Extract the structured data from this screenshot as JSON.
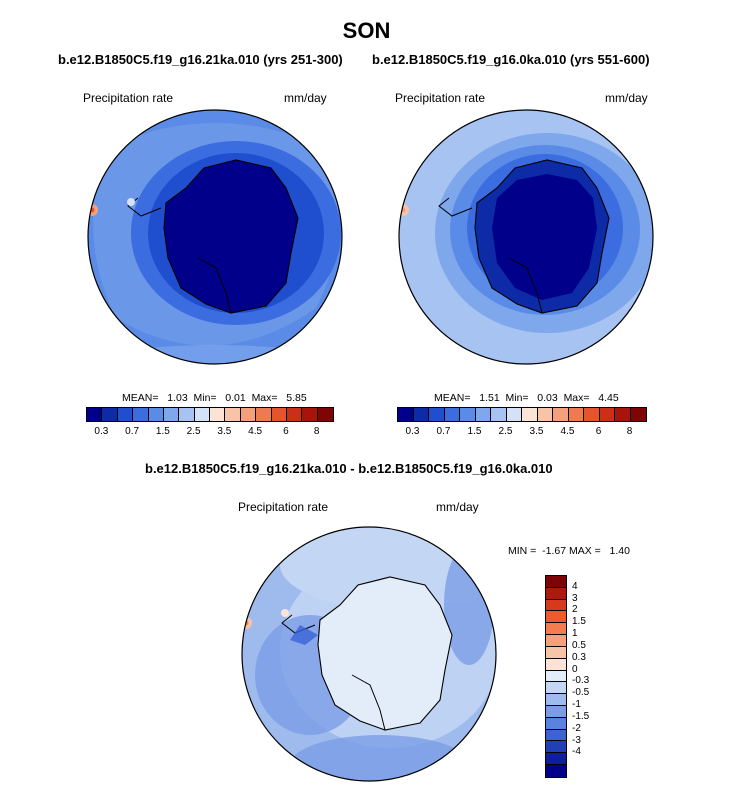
{
  "title": "SON",
  "panels": [
    {
      "subtitle": "b.e12.B1850C5.f19_g16.21ka.010 (yrs 251-300)",
      "left_label": "Precipitation rate",
      "right_label": "mm/day",
      "stats": "MEAN=   1.03  Min=   0.01  Max=   5.85"
    },
    {
      "subtitle": "b.e12.B1850C5.f19_g16.0ka.010 (yrs 551-600)",
      "left_label": "Precipitation rate",
      "right_label": "mm/day",
      "stats": "MEAN=   1.51  Min=   0.03  Max=   4.45"
    }
  ],
  "diff_panel": {
    "subtitle": "b.e12.B1850C5.f19_g16.21ka.010 - b.e12.B1850C5.f19_g16.0ka.010",
    "left_label": "Precipitation rate",
    "right_label": "mm/day",
    "stats": "MIN =  -1.67 MAX =   1.40"
  },
  "colorbar_abs": {
    "colors": [
      "#00008b",
      "#0d2ba7",
      "#1f4fce",
      "#3b6de0",
      "#5a8be6",
      "#7ea7ec",
      "#a7c3f2",
      "#d3e2f7",
      "#fbe4d6",
      "#f8c4a7",
      "#f5a07c",
      "#ef7a52",
      "#e5532f",
      "#cc2f17",
      "#a8130c",
      "#7d0505"
    ],
    "ticks": [
      "0.3",
      "0.7",
      "1.5",
      "2.5",
      "3.5",
      "4.5",
      "6",
      "8"
    ]
  },
  "colorbar_diff": {
    "colors_top_to_bottom": [
      "#7d0505",
      "#ad1a0d",
      "#d6391c",
      "#ef5a2f",
      "#f47c4f",
      "#f6a07c",
      "#f8c4a7",
      "#fbe4d6",
      "#e3ecf9",
      "#c3d6f3",
      "#9fbbed",
      "#7b9de6",
      "#5a82e0",
      "#3a63d6",
      "#2140b8",
      "#0f1f9c",
      "#00008b"
    ],
    "ticks": [
      "4",
      "3",
      "2",
      "1.5",
      "1",
      "0.5",
      "0.3",
      "0",
      "-0.3",
      "-0.5",
      "-1",
      "-1.5",
      "-2",
      "-3",
      "-4"
    ]
  },
  "maps": {
    "m1": {
      "ocean_outer": "#5a8be6",
      "mid": "#3b6de0",
      "inner": "#1f4fce",
      "ice": "#00008b"
    },
    "m2": {
      "ocean_outer": "#a7c3f2",
      "mid": "#7ea7ec",
      "inner": "#3b6de0",
      "ice": "#0d2ba7"
    },
    "m3": {
      "ocean_outer": "#9fbbed",
      "mid": "#c3d6f3",
      "inner": "#7b9de6",
      "ice": "#e3ecf9"
    }
  }
}
